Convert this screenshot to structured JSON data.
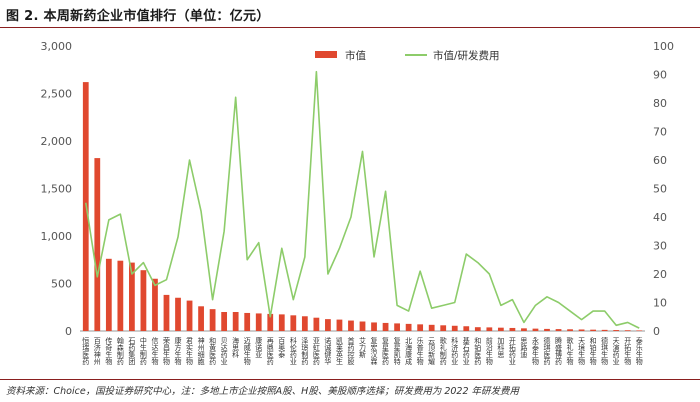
{
  "title": "图 2. 本周新药企业市值排行（单位：亿元）",
  "source": "资料来源：Choice，国投证券研究中心，注：多地上市企业按照A股、H股、美股顺序选择；研发费用为 2022 年研发费用",
  "colors": {
    "bar": "#e0482f",
    "line": "#8dcc6a",
    "rule": "#8a1f1f"
  },
  "chart_data": {
    "type": "bar",
    "legend_position": "top",
    "grid": false,
    "categories": [
      "恒瑞医药",
      "百济神州",
      "传奇生物",
      "翰森制药",
      "石药集团",
      "中生制药",
      "信达生物",
      "荣昌生物",
      "康方生物",
      "君实生物",
      "神州细胞",
      "和黄医药",
      "贝达药业",
      "海思科",
      "迈威生物",
      "康诺亚",
      "再鼎医药",
      "百奥泰",
      "科伦药业",
      "泽璟制药",
      "亚虹医药",
      "诺诚健华",
      "凯莱英生",
      "首药控股",
      "艾力斯",
      "复宏汉霖",
      "复星医药",
      "复星凯特",
      "北海康成",
      "乐普生物",
      "云顶新耀",
      "歌礼制药",
      "科济药业",
      "基石药业",
      "和铂医药",
      "前沿生物",
      "加科思",
      "开拓药业",
      "思路迪",
      "永泰生物",
      "德琪医药",
      "腾盛博药",
      "歌礼生物",
      "天境生物",
      "和铂生物",
      "德琪生物",
      "天演药业",
      "开拓生物",
      "泰乐生物"
    ],
    "series": [
      {
        "name": "市值",
        "axis": "left",
        "values": [
          2620,
          1820,
          760,
          740,
          720,
          640,
          550,
          380,
          350,
          320,
          260,
          230,
          200,
          200,
          190,
          185,
          180,
          175,
          165,
          155,
          140,
          125,
          120,
          110,
          100,
          90,
          85,
          80,
          75,
          70,
          65,
          60,
          55,
          50,
          40,
          38,
          35,
          32,
          28,
          25,
          22,
          20,
          18,
          16,
          14,
          12,
          10,
          8,
          6
        ]
      },
      {
        "name": "市值/研发费用",
        "axis": "right",
        "values": [
          45,
          19,
          39,
          41,
          20,
          24,
          16,
          18,
          33,
          60,
          42,
          11,
          35,
          82,
          25,
          31,
          5,
          29,
          11,
          26,
          91,
          20,
          29,
          40,
          63,
          26,
          49,
          9,
          7,
          21,
          8,
          9,
          10,
          27,
          24,
          20,
          9,
          11,
          3,
          9,
          12,
          10,
          7,
          4,
          7,
          7,
          2,
          3,
          1
        ]
      }
    ],
    "ylim_left": [
      0,
      3000
    ],
    "ylim_right": [
      0,
      100
    ],
    "yticks_left": [
      "0",
      "500",
      "1,000",
      "1,500",
      "2,000",
      "2,500",
      "3,000"
    ],
    "yticks_right": [
      "0",
      "10",
      "20",
      "30",
      "40",
      "50",
      "60",
      "70",
      "80",
      "90",
      "100"
    ]
  }
}
